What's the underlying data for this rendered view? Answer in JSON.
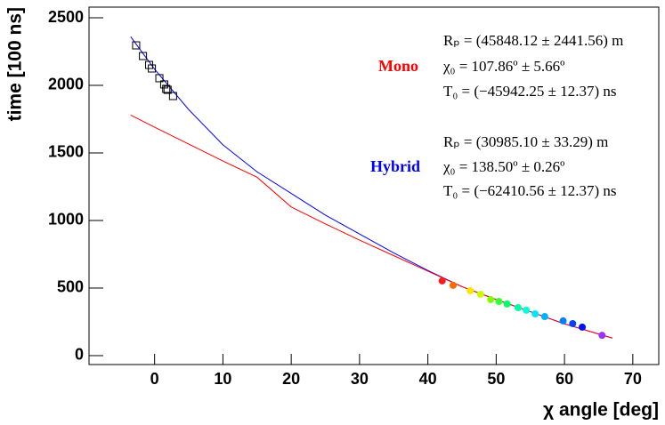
{
  "chart_data": {
    "type": "scatter",
    "xlabel": "χ angle [deg]",
    "ylabel": "time [100 ns]",
    "xlim": [
      -9.6,
      73.8
    ],
    "ylim": [
      -66,
      2579
    ],
    "xticks": [
      0,
      10,
      20,
      30,
      40,
      50,
      60,
      70
    ],
    "yticks": [
      0,
      500,
      1000,
      1500,
      2000,
      2500
    ],
    "series": [
      {
        "kind": "line",
        "color": "#0000ff",
        "x": [
          -3.5,
          0,
          5,
          10,
          15,
          20,
          25,
          30,
          35,
          40,
          45,
          50,
          55,
          60,
          67
        ],
        "values": [
          2360,
          2120,
          1820,
          1560,
          1360,
          1200,
          1040,
          900,
          760,
          630,
          510,
          415,
          325,
          235,
          130
        ]
      },
      {
        "kind": "line",
        "color": "#ff0000",
        "x": [
          -3.5,
          0,
          5,
          10,
          15,
          20,
          25,
          30,
          35,
          40,
          45,
          50,
          55,
          60,
          67
        ],
        "values": [
          1780,
          1690,
          1565,
          1440,
          1320,
          1100,
          975,
          855,
          740,
          625,
          510,
          415,
          325,
          235,
          130
        ]
      },
      {
        "kind": "square",
        "color": "#000000",
        "x": [
          -2.7,
          -1.7,
          -0.8,
          -0.4,
          0.7,
          1.4,
          1.7,
          1.9,
          2.7
        ],
        "values": [
          2296,
          2217,
          2151,
          2125,
          2053,
          2007,
          1974,
          1967,
          1921
        ]
      },
      {
        "kind": "dot",
        "colors": [
          "#ff1a1a",
          "#ff6a00",
          "#ffe600",
          "#c8ff00",
          "#80ff00",
          "#33ff33",
          "#00ff66",
          "#00ffaa",
          "#00ffdd",
          "#00e5ff",
          "#00b3ff",
          "#0080ff",
          "#0040ff",
          "#0010ff",
          "#9933ff"
        ],
        "x": [
          42.1,
          43.7,
          46.2,
          47.7,
          49.2,
          50.4,
          51.6,
          53.2,
          54.4,
          55.7,
          57.1,
          59.8,
          61.2,
          62.6,
          65.5
        ],
        "values": [
          553,
          520,
          480,
          454,
          414,
          401,
          382,
          355,
          336,
          309,
          289,
          257,
          237,
          211,
          150
        ]
      }
    ],
    "annotations": [
      {
        "text": "Mono",
        "color": "#ff0000"
      },
      {
        "text": "Hybrid",
        "color": "#0000ff"
      }
    ],
    "formulas": [
      "Rₚ = (45848.12 ± 2441.56) m",
      "χ₀ = 107.86º ± 5.66º",
      "T₀ = (−45942.25 ± 12.37) ns",
      "Rₚ = (30985.10 ± 33.29) m",
      "χ₀ = 138.50º ± 0.26º",
      "T₀ = (−62410.56 ± 12.37) ns"
    ]
  }
}
